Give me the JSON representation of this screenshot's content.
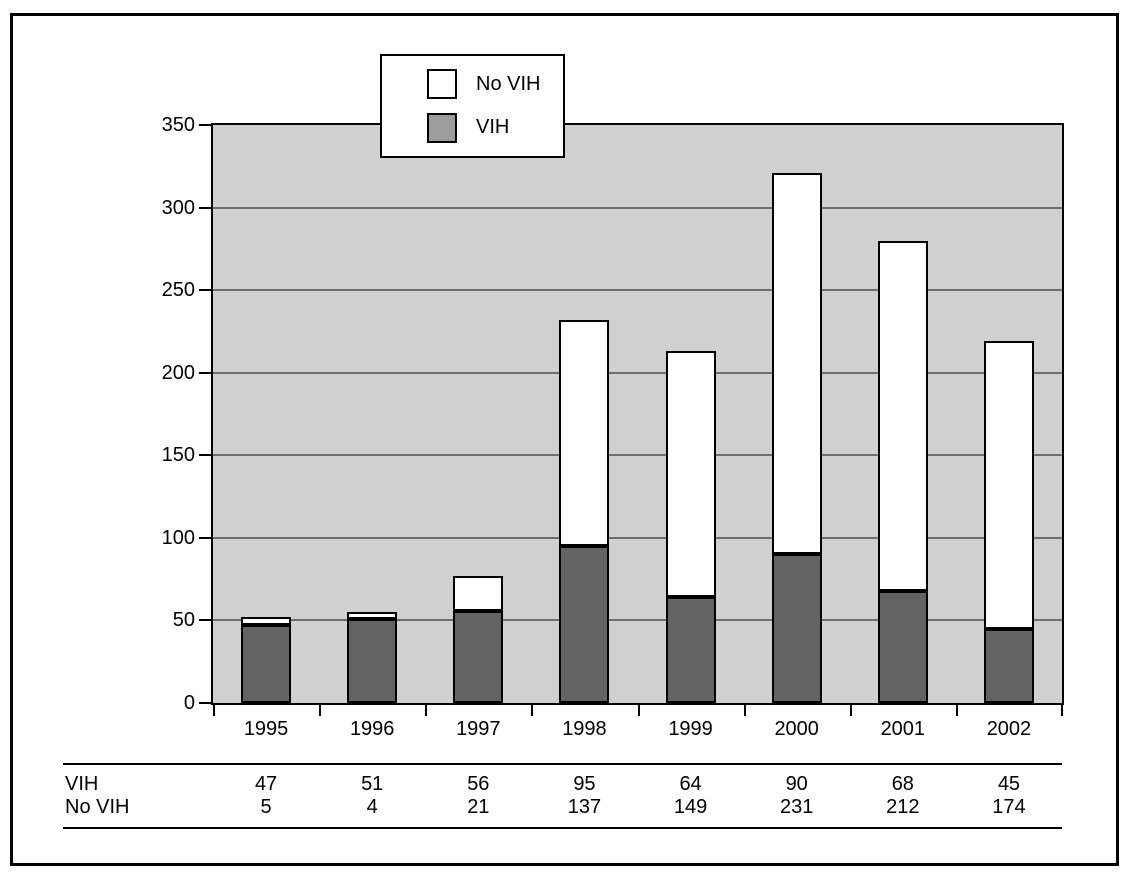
{
  "chart_data": {
    "type": "bar",
    "stacked": true,
    "categories": [
      "1995",
      "1996",
      "1997",
      "1998",
      "1999",
      "2000",
      "2001",
      "2002"
    ],
    "series": [
      {
        "name": "VIH",
        "color": "#636363",
        "values": [
          47,
          51,
          56,
          95,
          64,
          90,
          68,
          45
        ]
      },
      {
        "name": "No VIH",
        "color": "#ffffff",
        "values": [
          5,
          4,
          21,
          137,
          149,
          231,
          212,
          174
        ]
      }
    ],
    "title": "",
    "xlabel": "",
    "ylabel": "",
    "ylim": [
      0,
      350
    ],
    "yticks": [
      0,
      50,
      100,
      150,
      200,
      250,
      300,
      350
    ],
    "grid": true,
    "legend_position": "top-left-overlay",
    "plot_background": "#d0d0d0",
    "gridline_color": "#6e6e6e",
    "bar_border_color": "#000000"
  },
  "legend": {
    "items": [
      {
        "label": "No VIH",
        "swatch_color": "#ffffff"
      },
      {
        "label": "VIH",
        "swatch_color": "#9c9c9c"
      }
    ]
  },
  "table": {
    "rows": [
      {
        "label": "VIH",
        "values": [
          "47",
          "51",
          "56",
          "95",
          "64",
          "90",
          "68",
          "45"
        ]
      },
      {
        "label": "No VIH",
        "values": [
          "5",
          "4",
          "21",
          "137",
          "149",
          "231",
          "212",
          "174"
        ]
      }
    ]
  }
}
